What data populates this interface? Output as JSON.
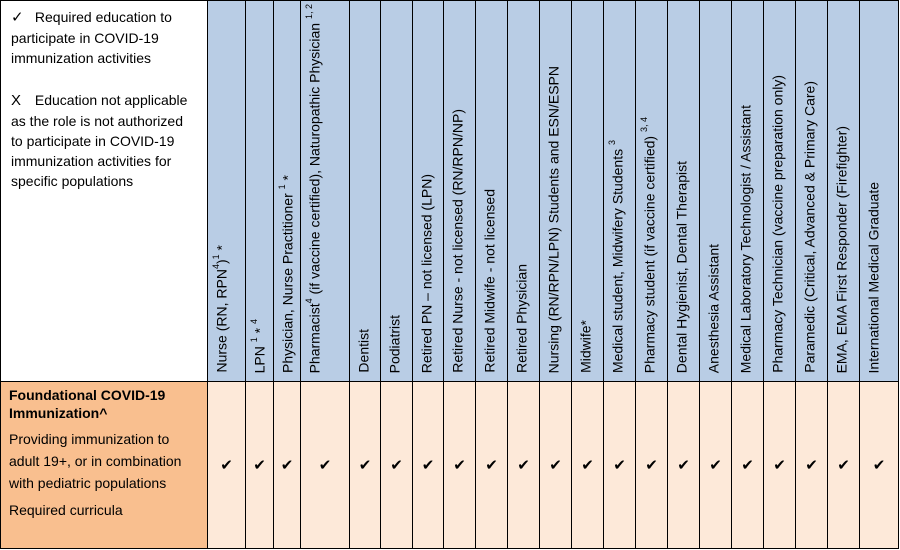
{
  "legend": {
    "required_symbol": "✓",
    "required_text": "Required education to participate in COVID-19 immunization activities",
    "not_applicable_symbol": "X",
    "not_applicable_text": "Education not applicable as the role is not authorized to participate in COVID-19 immunization activities for specific populations"
  },
  "columns": [
    {
      "label": "Nurse (RN, RPN",
      "sup": "4",
      "tail": ")",
      "sup2": "1",
      "tail2": " *"
    },
    {
      "label": "LPN ",
      "sup": "1",
      "tail": " * ",
      "sup2": "4",
      "tail2": ""
    },
    {
      "label": "Physician, Nurse Practitioner ",
      "sup": "1",
      "tail": " *",
      "sup2": "",
      "tail2": ""
    },
    {
      "label": "Pharmacist",
      "sup": "4",
      "tail": " (if vaccine certified), Naturopathic Physician ",
      "sup2": "1, 2",
      "tail2": ""
    },
    {
      "label": "Dentist",
      "sup": "",
      "tail": "",
      "sup2": "",
      "tail2": ""
    },
    {
      "label": "Podiatrist",
      "sup": "",
      "tail": "",
      "sup2": "",
      "tail2": ""
    },
    {
      "label": "Retired PN – not licensed (LPN)",
      "sup": "",
      "tail": "",
      "sup2": "",
      "tail2": ""
    },
    {
      "label": "Retired Nurse - not licensed (RN/RPN/NP)",
      "sup": "",
      "tail": "",
      "sup2": "",
      "tail2": ""
    },
    {
      "label": "Retired Midwife - not licensed",
      "sup": "",
      "tail": "",
      "sup2": "",
      "tail2": ""
    },
    {
      "label": "Retired Physician",
      "sup": "",
      "tail": "",
      "sup2": "",
      "tail2": ""
    },
    {
      "label": "Nursing (RN/RPN/LPN) Students and ESN/ESPN",
      "sup": "",
      "tail": "",
      "sup2": "",
      "tail2": ""
    },
    {
      "label": "Midwife*",
      "sup": "",
      "tail": "",
      "sup2": "",
      "tail2": ""
    },
    {
      "label": "Medical student,  Midwifery Students ",
      "sup": "3",
      "tail": "",
      "sup2": "",
      "tail2": ""
    },
    {
      "label": "Pharmacy student (if vaccine certified) ",
      "sup": "3, 4",
      "tail": "",
      "sup2": "",
      "tail2": ""
    },
    {
      "label": "Dental Hygienist, Dental Therapist",
      "sup": "",
      "tail": "",
      "sup2": "",
      "tail2": ""
    },
    {
      "label": "Anesthesia Assistant",
      "sup": "",
      "tail": "",
      "sup2": "",
      "tail2": ""
    },
    {
      "label": "Medical Laboratory  Technologist / Assistant",
      "sup": "",
      "tail": "",
      "sup2": "",
      "tail2": ""
    },
    {
      "label": "Pharmacy Technician (vaccine preparation only)",
      "sup": "",
      "tail": "",
      "sup2": "",
      "tail2": ""
    },
    {
      "label": "Paramedic (Critical, Advanced & Primary Care)",
      "sup": "",
      "tail": "",
      "sup2": "",
      "tail2": ""
    },
    {
      "label": "EMA, EMA First Responder (Firefighter)",
      "sup": "",
      "tail": "",
      "sup2": "",
      "tail2": ""
    },
    {
      "label": "International Medical Graduate",
      "sup": "",
      "tail": "",
      "sup2": "",
      "tail2": ""
    }
  ],
  "row": {
    "title": "Foundational COVID-19 Immunization^",
    "description": "Providing immunization to adult 19+, or in combination with pediatric populations",
    "requirement": "Required curricula",
    "cells": [
      "✔",
      "✔",
      "✔",
      "✔",
      "✔",
      "✔",
      "✔",
      "✔",
      "✔",
      "✔",
      "✔",
      "✔",
      "✔",
      "✔",
      "✔",
      "✔",
      "✔",
      "✔",
      "✔",
      "✔",
      "✔"
    ]
  },
  "colors": {
    "header_bg": "#b9cde5",
    "row_label_bg": "#f9bf8f",
    "row_cell_bg": "#fde9d9"
  }
}
